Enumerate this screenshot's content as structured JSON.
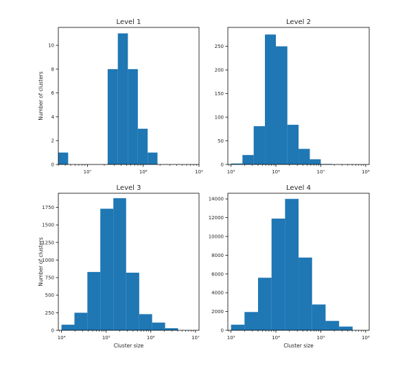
{
  "chart_data": [
    {
      "type": "bar",
      "title": "Level 1",
      "xlabel": "",
      "ylabel": "Number of clusters",
      "xscale": "log",
      "xlim": [
        3000000.0,
        1000000000.0
      ],
      "ylim": [
        0,
        11.5
      ],
      "bin_edges": [
        3000000.0,
        4500000.0,
        6800000.0,
        10000000.0,
        15000000.0,
        23000000.0,
        35000000.0,
        53000000.0,
        80000000.0,
        120000000.0,
        180000000.0,
        280000000.0,
        420000000.0
      ],
      "values": [
        1,
        0,
        0,
        0,
        0,
        8,
        11,
        8,
        3,
        1,
        0,
        0
      ],
      "yticks": [
        0,
        2,
        4,
        6,
        8,
        10
      ],
      "xticks": [
        10000000,
        100000000,
        1000000000
      ],
      "xtick_labels": [
        "10⁷",
        "10⁸",
        "10⁹"
      ],
      "grid": false,
      "color": "#1f77b4"
    },
    {
      "type": "bar",
      "title": "Level 2",
      "xlabel": "",
      "ylabel": "",
      "xscale": "log",
      "xlim": [
        85000,
        120000000.0
      ],
      "ylim": [
        0,
        290
      ],
      "bin_edges": [
        100000,
        180000,
        320000,
        570000,
        1000000,
        1800000,
        3200000,
        5700000,
        10000000,
        18000000,
        32000000
      ],
      "values": [
        2,
        20,
        81,
        275,
        250,
        84,
        33,
        11,
        1,
        0
      ],
      "yticks": [
        0,
        50,
        100,
        150,
        200,
        250
      ],
      "xticks": [
        100000,
        1000000,
        10000000,
        100000000
      ],
      "xtick_labels": [
        "10⁵",
        "10⁶",
        "10⁷",
        "10⁸"
      ],
      "grid": false,
      "color": "#1f77b4"
    },
    {
      "type": "bar",
      "title": "Level 3",
      "xlabel": "Cluster size",
      "ylabel": "Number of clusters",
      "xscale": "log",
      "xlim": [
        8500,
        12000000.0
      ],
      "ylim": [
        0,
        1950
      ],
      "bin_edges": [
        10000,
        19500,
        38000,
        74000,
        145000,
        280000,
        550000,
        1070000,
        2090000,
        4070000,
        8000000
      ],
      "values": [
        80,
        250,
        830,
        1730,
        1880,
        820,
        230,
        110,
        30,
        0
      ],
      "yticks": [
        0,
        250,
        500,
        750,
        1000,
        1250,
        1500,
        1750
      ],
      "xticks": [
        10000,
        100000,
        1000000,
        10000000
      ],
      "xtick_labels": [
        "10⁴",
        "10⁵",
        "10⁶",
        "10⁷"
      ],
      "grid": false,
      "color": "#1f77b4"
    },
    {
      "type": "bar",
      "title": "Level 4",
      "xlabel": "Cluster size",
      "ylabel": "",
      "xscale": "log",
      "xlim": [
        850,
        1200000.0
      ],
      "ylim": [
        0,
        14600
      ],
      "bin_edges": [
        1000,
        2000,
        4000,
        8000,
        16000,
        32000,
        64000,
        128000,
        256000,
        512000,
        1000000
      ],
      "values": [
        600,
        1950,
        5600,
        11900,
        14000,
        7750,
        2750,
        1000,
        400,
        0
      ],
      "yticks": [
        0,
        2000,
        4000,
        6000,
        8000,
        10000,
        12000,
        14000
      ],
      "xticks": [
        1000,
        10000,
        100000,
        1000000
      ],
      "xtick_labels": [
        "10³",
        "10⁴",
        "10⁵",
        "10⁶"
      ],
      "grid": false,
      "color": "#1f77b4"
    }
  ]
}
